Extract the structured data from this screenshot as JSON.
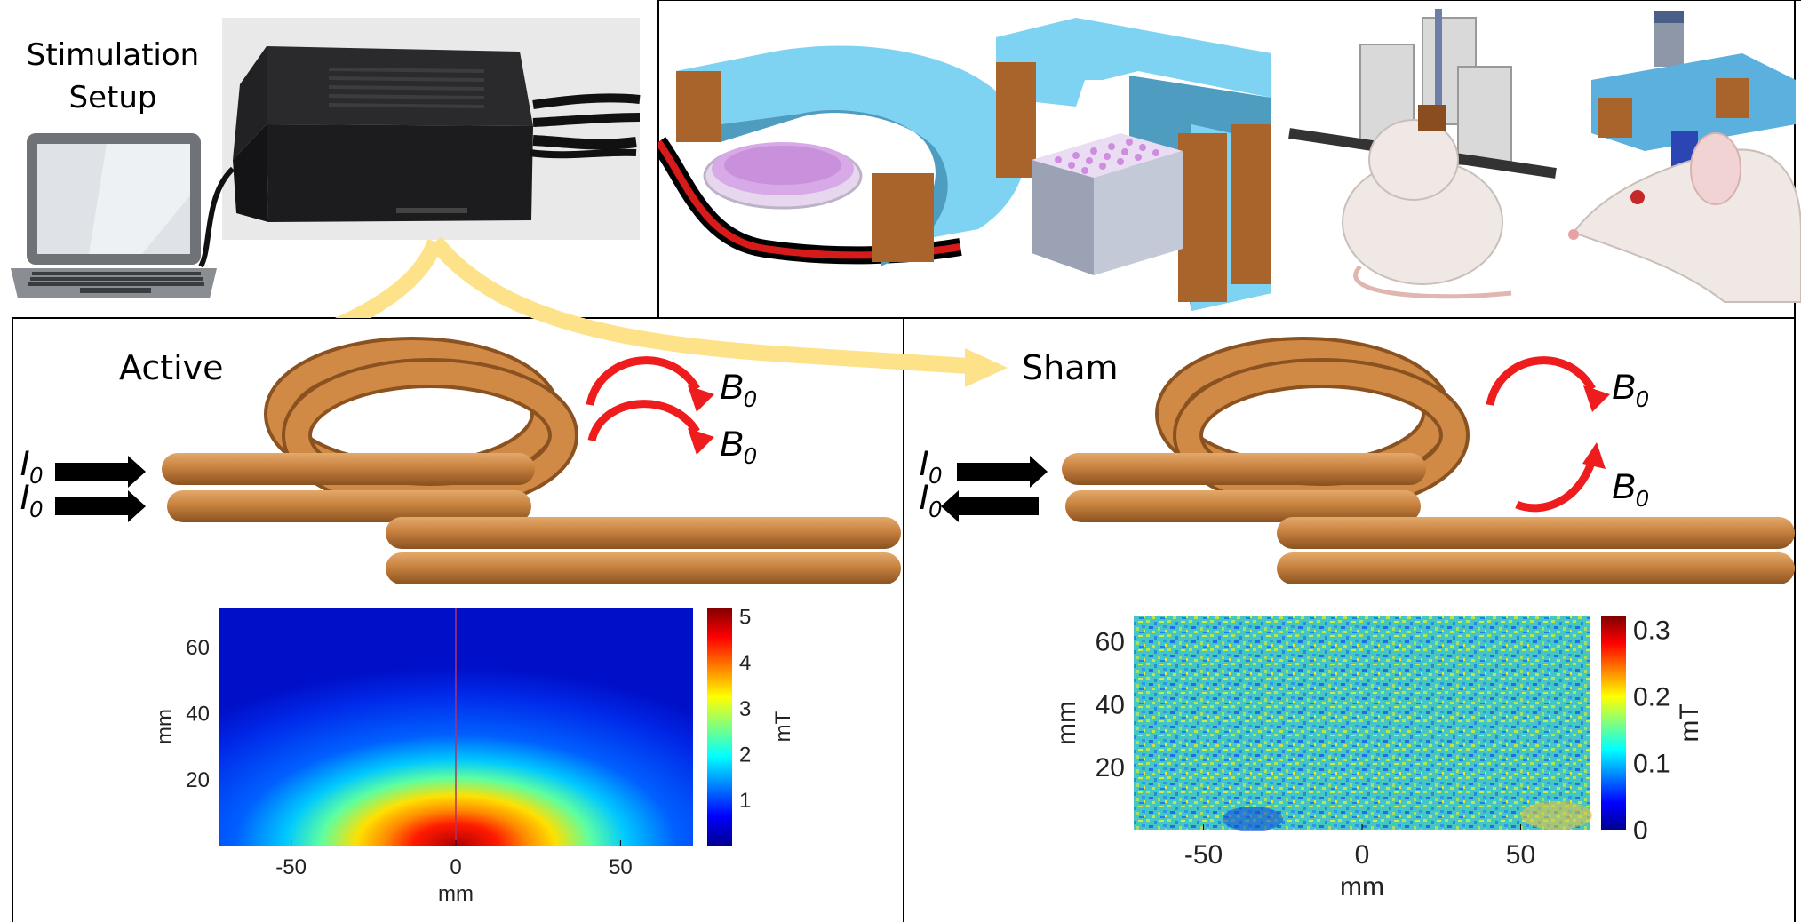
{
  "setup": {
    "title_line1": "Stimulation",
    "title_line2": "Setup"
  },
  "active": {
    "label": "Active",
    "current_label_1": "I",
    "current_sub_1": "0",
    "current_label_2": "I",
    "current_sub_2": "0",
    "field_label_1": "B",
    "field_sub_1": "0",
    "field_label_2": "B",
    "field_sub_2": "0"
  },
  "sham": {
    "label": "Sham",
    "current_label_1": "I",
    "current_sub_1": "0",
    "current_label_2": "I",
    "current_sub_2": "0",
    "field_label_1": "B",
    "field_sub_1": "0",
    "field_label_2": "B",
    "field_sub_2": "0"
  },
  "colors": {
    "copper": "#c8813f",
    "copper_light": "#e3a96b",
    "copper_dark": "#8a5220",
    "arrow_red": "#ee1c1c",
    "arrow_yellow": "#fde28a",
    "coil_blue": "#7fd3f2",
    "winding": "#a8642a"
  },
  "chart_data": [
    {
      "type": "heatmap",
      "xlabel": "mm",
      "ylabel": "mm",
      "xlim": [
        -72,
        72
      ],
      "ylim": [
        0,
        72
      ],
      "xticks": [
        "-50",
        "0",
        "50"
      ],
      "yticks": [
        "20",
        "40",
        "60"
      ],
      "colorbar": {
        "label": "mT",
        "range": [
          0,
          5.2
        ],
        "ticks": [
          "1",
          "2",
          "3",
          "4",
          "5"
        ]
      },
      "description": "Field peaks near y=0 around x=0 and decays with distance"
    },
    {
      "type": "heatmap",
      "xlabel": "mm",
      "ylabel": "mm",
      "xlim": [
        -72,
        72
      ],
      "ylim": [
        0,
        68
      ],
      "xticks": [
        "-50",
        "0",
        "50"
      ],
      "yticks": [
        "20",
        "40",
        "60"
      ],
      "colorbar": {
        "label": "mT",
        "range": [
          0,
          0.32
        ],
        "ticks": [
          "0",
          "0.1",
          "0.2",
          "0.3"
        ]
      },
      "description": "Noise-level field, roughly uniform"
    }
  ]
}
